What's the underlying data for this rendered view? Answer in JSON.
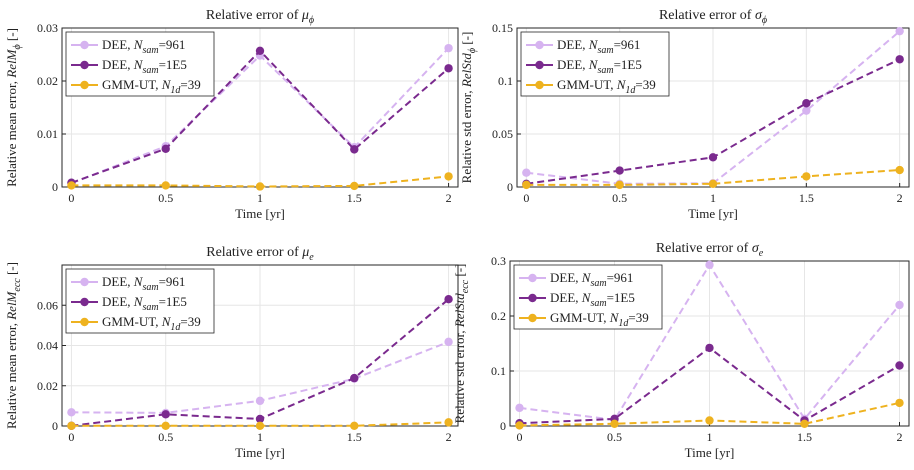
{
  "legend_labels": [
    {
      "prefix": "DEE, ",
      "var": "N",
      "sub": "sam",
      "suffix": "=961"
    },
    {
      "prefix": "DEE, ",
      "var": "N",
      "sub": "sam",
      "suffix": "=1E5"
    },
    {
      "prefix": "GMM-UT, ",
      "var": "N",
      "sub": "1d",
      "suffix": "=39"
    }
  ],
  "colors": {
    "dee961": "#d6b3f0",
    "dee1e5": "#7a2a8e",
    "gmm": "#eeb21f"
  },
  "chart_data": [
    {
      "type": "line",
      "title": {
        "text": "Relative error of ",
        "sym": "μ",
        "sub": "ϕ"
      },
      "xlabel": "Time [yr]",
      "ylabel": {
        "text": "Relative mean error, ",
        "sym": "RelM",
        "sub": "ϕ",
        "unit": " [-]"
      },
      "x": [
        0,
        0.5,
        1,
        1.5,
        2
      ],
      "xticks": [
        "0",
        "0.5",
        "1",
        "1.5",
        "2"
      ],
      "ylim": [
        0,
        0.03
      ],
      "yticks": [
        0,
        0.01,
        0.02,
        0.03
      ],
      "ytick_labels": [
        "0",
        "0.01",
        "0.02",
        "0.03"
      ],
      "grid": true,
      "legend_position": "top-left",
      "series": [
        {
          "color_key": "dee961",
          "values": [
            0.0007,
            0.0077,
            0.0248,
            0.0075,
            0.0262
          ]
        },
        {
          "color_key": "dee1e5",
          "values": [
            0.0008,
            0.0072,
            0.0257,
            0.0071,
            0.0224
          ]
        },
        {
          "color_key": "gmm",
          "values": [
            0.0003,
            0.0003,
            0.0001,
            0.0002,
            0.002
          ]
        }
      ]
    },
    {
      "type": "line",
      "title": {
        "text": "Relative error of ",
        "sym": "σ",
        "sub": "ϕ"
      },
      "xlabel": "Time [yr]",
      "ylabel": {
        "text": "Relative std error, ",
        "sym": "RelStd",
        "sub": "ϕ",
        "unit": " [-]"
      },
      "x": [
        0,
        0.5,
        1,
        1.5,
        2
      ],
      "xticks": [
        "0",
        "0.5",
        "1",
        "1.5",
        "2"
      ],
      "ylim": [
        0,
        0.15
      ],
      "yticks": [
        0,
        0.05,
        0.1,
        0.15
      ],
      "ytick_labels": [
        "0",
        "0.05",
        "0.1",
        "0.15"
      ],
      "grid": true,
      "legend_position": "top-left",
      "series": [
        {
          "color_key": "dee961",
          "values": [
            0.0135,
            0.003,
            0.0035,
            0.072,
            0.147
          ]
        },
        {
          "color_key": "dee1e5",
          "values": [
            0.003,
            0.0155,
            0.028,
            0.079,
            0.1205
          ]
        },
        {
          "color_key": "gmm",
          "values": [
            0.002,
            0.002,
            0.003,
            0.01,
            0.016
          ]
        }
      ]
    },
    {
      "type": "line",
      "title": {
        "text": "Relative error of ",
        "sym": "μ",
        "sub": "e"
      },
      "xlabel": "Time [yr]",
      "ylabel": {
        "text": "Relative mean error, ",
        "sym": "RelM",
        "sub": "ecc",
        "unit": " [-]"
      },
      "x": [
        0,
        0.5,
        1,
        1.5,
        2
      ],
      "xticks": [
        "0",
        "0.5",
        "1",
        "1.5",
        "2"
      ],
      "ylim": [
        0,
        0.08
      ],
      "yticks": [
        0,
        0.02,
        0.04,
        0.06
      ],
      "ytick_labels": [
        "0",
        "0.02",
        "0.04",
        "0.06"
      ],
      "grid": true,
      "legend_position": "top-left",
      "series": [
        {
          "color_key": "dee961",
          "values": [
            0.0068,
            0.0065,
            0.0125,
            0.0235,
            0.0418
          ]
        },
        {
          "color_key": "dee1e5",
          "values": [
            0.0001,
            0.0058,
            0.0035,
            0.0238,
            0.063
          ]
        },
        {
          "color_key": "gmm",
          "values": [
            0.0001,
            0.0001,
            0.0001,
            0.0001,
            0.0018
          ]
        }
      ]
    },
    {
      "type": "line",
      "title": {
        "text": "Relative error of ",
        "sym": "σ",
        "sub": "e"
      },
      "xlabel": "Time [yr]",
      "ylabel": {
        "text": "Relative std error, ",
        "sym": "RelStd",
        "sub": "ecc",
        "unit": " [-]"
      },
      "x": [
        0,
        0.5,
        1,
        1.5,
        2
      ],
      "xticks": [
        "0",
        "0.5",
        "1",
        "1.5",
        "2"
      ],
      "ylim": [
        0,
        0.3
      ],
      "yticks": [
        0,
        0.1,
        0.2,
        0.3
      ],
      "ytick_labels": [
        "0",
        "0.1",
        "0.2",
        "0.3"
      ],
      "grid": true,
      "legend_position": "top-left",
      "series": [
        {
          "color_key": "dee961",
          "values": [
            0.033,
            0.011,
            0.293,
            0.013,
            0.22
          ]
        },
        {
          "color_key": "dee1e5",
          "values": [
            0.005,
            0.013,
            0.142,
            0.01,
            0.11
          ]
        },
        {
          "color_key": "gmm",
          "values": [
            0.001,
            0.004,
            0.01,
            0.004,
            0.042
          ]
        }
      ]
    }
  ]
}
